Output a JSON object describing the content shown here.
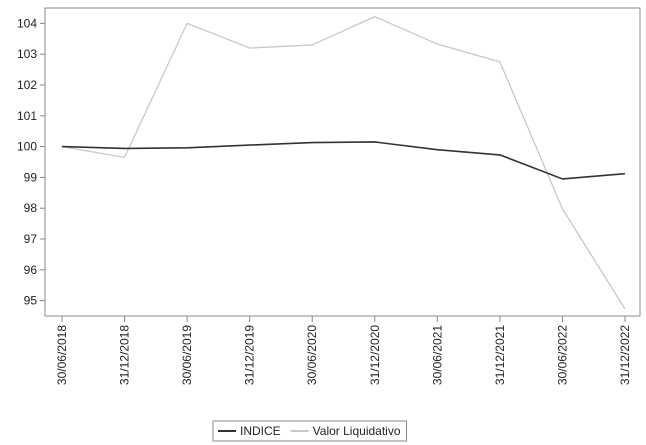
{
  "chart_data": {
    "type": "line",
    "title": "",
    "xlabel": "",
    "ylabel": "",
    "categories": [
      "30/06/2018",
      "31/12/2018",
      "30/06/2019",
      "31/12/2019",
      "30/06/2020",
      "31/12/2020",
      "30/06/2021",
      "31/12/2021",
      "30/06/2022",
      "31/12/2022"
    ],
    "ylim": [
      94.5,
      104.5
    ],
    "yticks": [
      95,
      96,
      97,
      98,
      99,
      100,
      101,
      102,
      103,
      104
    ],
    "grid": false,
    "legend_position": "bottom",
    "series": [
      {
        "name": "INDICE",
        "color": "#333333",
        "values": [
          100.0,
          99.94,
          99.96,
          100.05,
          100.13,
          100.15,
          99.9,
          99.73,
          98.95,
          99.12
        ]
      },
      {
        "name": "Valor Liquidativo",
        "color": "#c8c8c8",
        "values": [
          100.0,
          99.65,
          104.0,
          103.2,
          103.3,
          104.22,
          103.33,
          102.75,
          97.98,
          94.73
        ]
      }
    ]
  }
}
